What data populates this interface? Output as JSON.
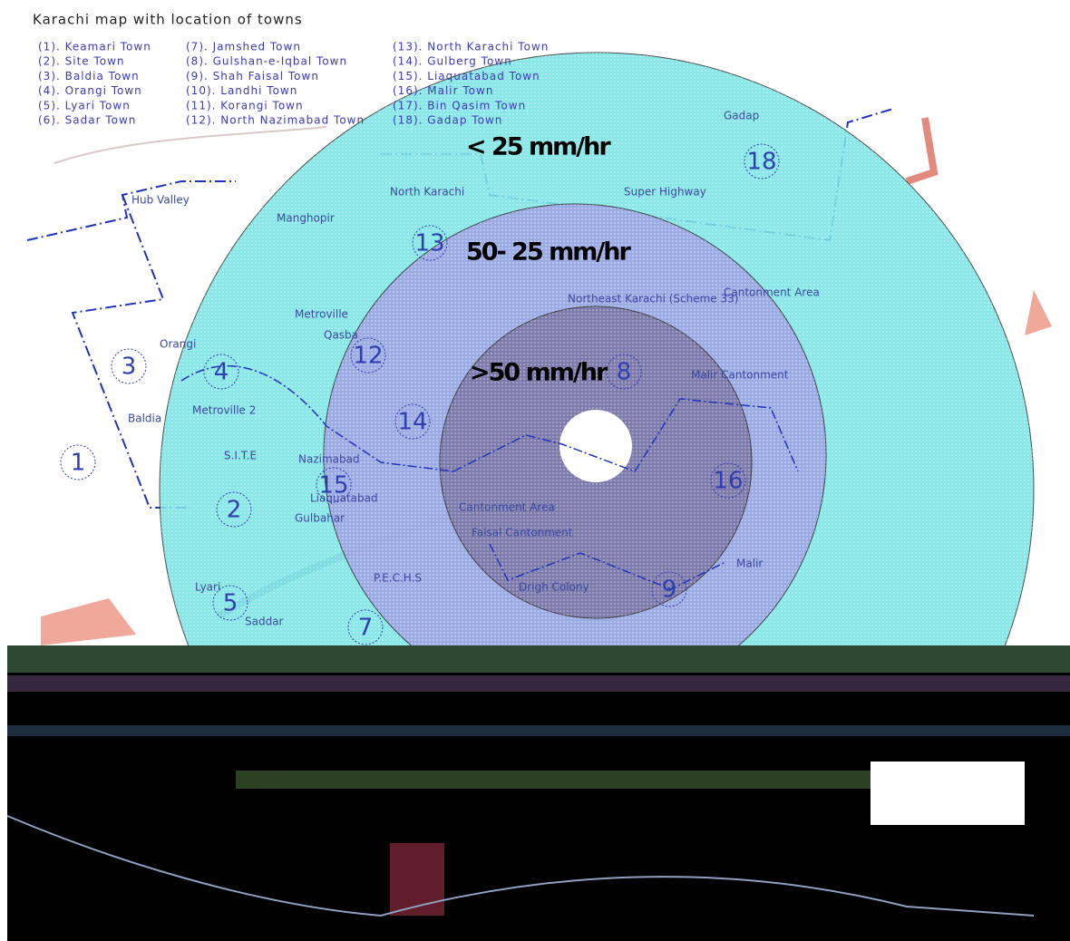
{
  "header": {
    "title": "Karachi map with location of towns"
  },
  "legend": {
    "items": [
      "(1). Keamari Town",
      "(2). Site Town",
      "(3). Baldia Town",
      "(4). Orangi Town",
      "(5). Lyari Town",
      "(6). Sadar Town",
      "(7). Jamshed Town",
      "(8). Gulshan-e-Iqbal Town",
      "(9). Shah Faisal Town",
      "(10). Landhi Town",
      "(11). Korangi Town",
      "(12). North Nazimabad Town",
      "(13). North Karachi Town",
      "(14). Gulberg Town",
      "(15). Liaquatabad Town",
      "(16). Malir Town",
      "(17). Bin Qasim Town",
      "(18). Gadap Town"
    ]
  },
  "zones": [
    "< 25 mm/hr",
    "50- 25 mm/hr",
    ">50 mm/hr"
  ],
  "places": [
    "Gadap",
    "Hub Valley",
    "Manghopir",
    "North Karachi",
    "Super Highway",
    "Cantonment Area",
    "Northeast Karachi (Scheme 33)",
    "Metroville",
    "Qasba",
    "Orangi",
    "Baldia",
    "Metroville 2",
    "S.I.T.E",
    "Nazimabad",
    "Liaquatabad",
    "Gulbahar",
    "Malir Cantonment",
    "Cantonment Area",
    "Faisal Cantonment",
    "P.E.C.H.S",
    "Drigh Colony",
    "Malir",
    "Saddar",
    "Lyari"
  ],
  "town_markers": [
    "1",
    "2",
    "3",
    "4",
    "5",
    "7",
    "8",
    "9",
    "12",
    "13",
    "14",
    "15",
    "16",
    "18"
  ]
}
